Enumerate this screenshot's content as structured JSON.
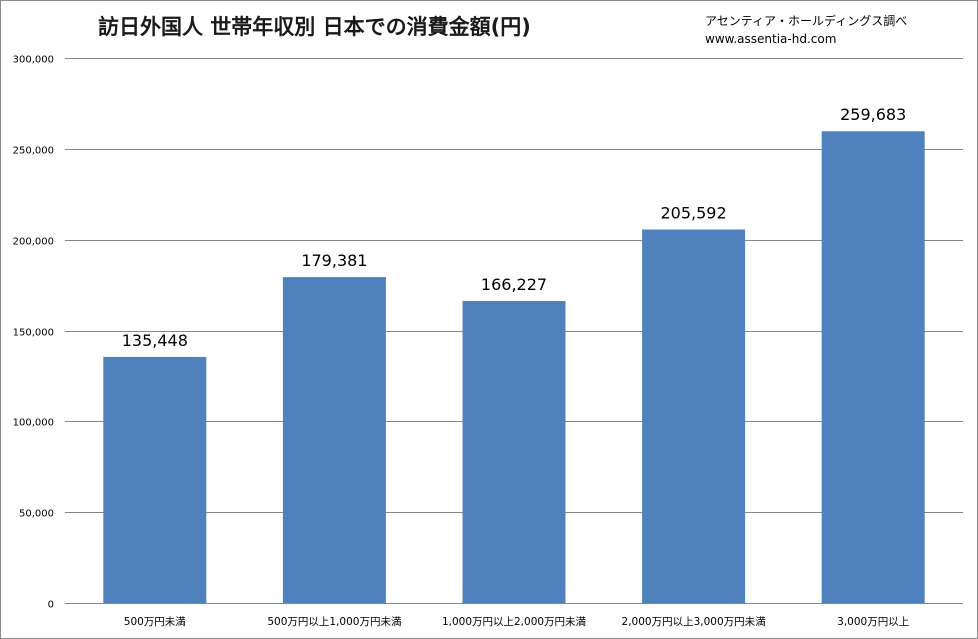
{
  "chart_data": {
    "type": "bar",
    "title": "訪日外国人 世帯年収別 日本での消費金額(円)",
    "source_line1": "アセンティア・ホールディングス調べ",
    "source_line2": "www.assentia-hd.com",
    "categories": [
      "500万円未満",
      "500万円以上1,000万円未満",
      "1,000万円以上2,000万円未満",
      "2,000万円以上3,000万円未満",
      "3,000万円以上"
    ],
    "values": [
      135448,
      179381,
      166227,
      205592,
      259683
    ],
    "data_labels": [
      "135,448",
      "179,381",
      "166,227",
      "205,592",
      "259,683"
    ],
    "ylim": [
      0,
      300000
    ],
    "yticks": [
      0,
      50000,
      100000,
      150000,
      200000,
      250000,
      300000
    ],
    "ytick_labels": [
      "0",
      "50,000",
      "100,000",
      "150,000",
      "200,000",
      "250,000",
      "300,000"
    ],
    "grid": true,
    "legend": "none",
    "colors": {
      "bar": "#4f81bd",
      "grid": "#868686",
      "axis": "#868686",
      "frame": "#8c8c8c"
    }
  }
}
